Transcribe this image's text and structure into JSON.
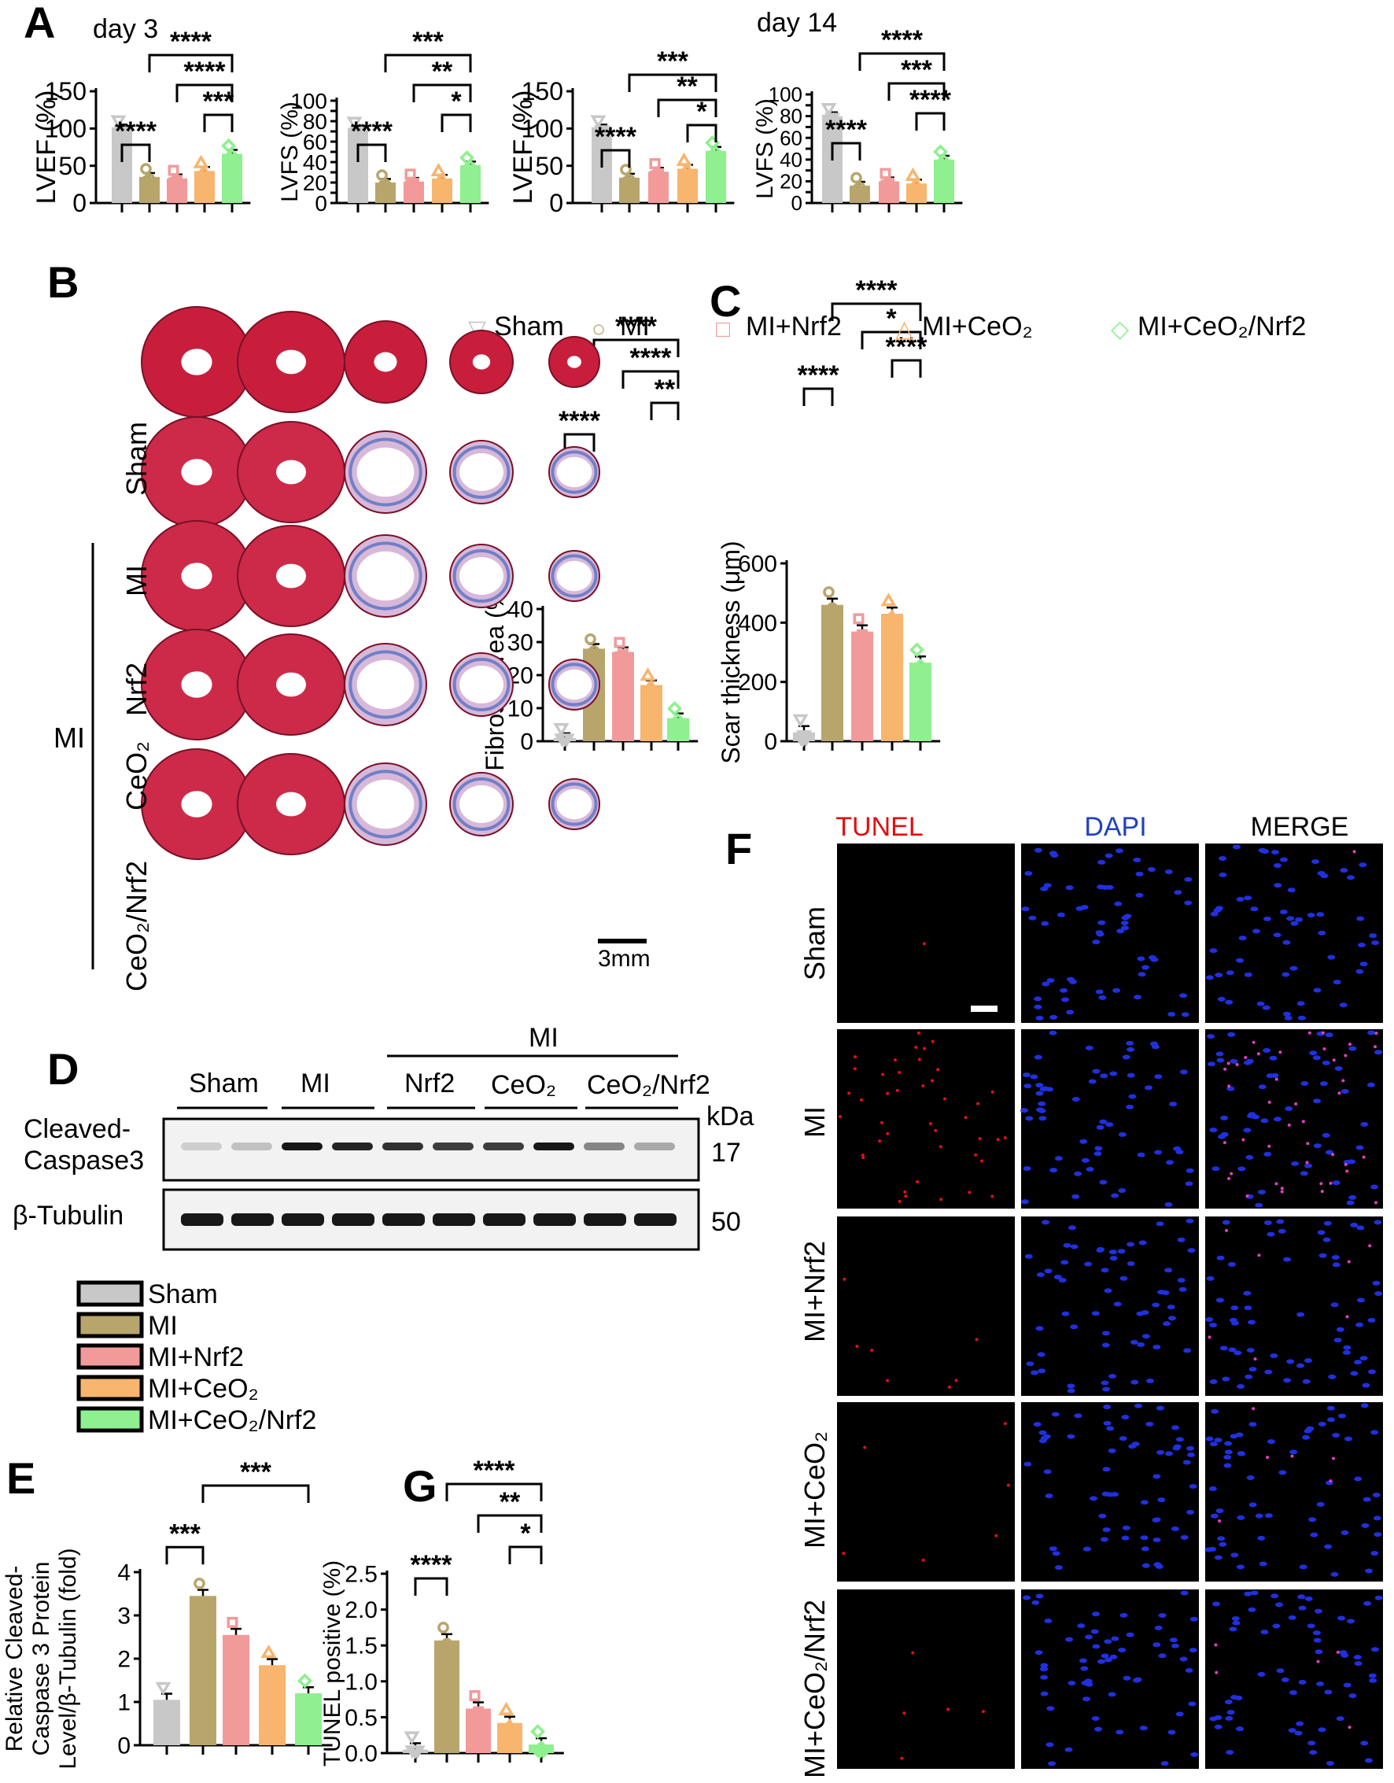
{
  "colors": {
    "Sham": "#c8c8c8",
    "MI": "#b7a56b",
    "MI+Nrf2": "#f29a9a",
    "MI+CeO2": "#f8b56e",
    "MI+CeO2/Nrf2": "#8ef08e",
    "tunel": "#e01010",
    "dapi": "#2040c0"
  },
  "panels": {
    "A": {
      "label": "A",
      "day3": "day 3",
      "day14": "day 14"
    },
    "B": {
      "label": "B",
      "rows": [
        "Sham",
        "MI",
        "Nrf2",
        "CeO₂",
        "CeO₂/Nrf2"
      ],
      "group": "MI",
      "scale": "3mm"
    },
    "C": {
      "label": "C"
    },
    "D": {
      "label": "D",
      "groups": [
        "Sham",
        "MI",
        "Nrf2",
        "CeO₂",
        "CeO₂/Nrf2"
      ],
      "mi_group": "MI",
      "kda": "kDa",
      "row1_line1": "Cleaved-",
      "row1_line2": "Caspase3",
      "row1_kda": "17",
      "row2": "β-Tubulin",
      "row2_kda": "50"
    },
    "E": {
      "label": "E"
    },
    "F": {
      "label": "F",
      "cols": [
        "TUNEL",
        "DAPI",
        "MERGE"
      ],
      "rows": [
        "Sham",
        "MI",
        "MI+Nrf2",
        "MI+CeO₂",
        "MI+CeO₂/Nrf2"
      ]
    },
    "G": {
      "label": "G"
    }
  },
  "legend_a": [
    "Sham",
    "MI",
    "MI+Nrf2",
    "MI+CeO₂",
    "MI+CeO₂/Nrf2"
  ],
  "legend_d": [
    "Sham",
    "MI",
    "MI+Nrf2",
    "MI+CeO₂",
    "MI+CeO₂/Nrf2"
  ],
  "chart_data": [
    {
      "id": "a1",
      "type": "bar",
      "categories": [
        "Sham",
        "MI",
        "MI+Nrf2",
        "MI+CeO2",
        "MI+CeO2/Nrf2"
      ],
      "values": [
        100,
        35,
        33,
        43,
        66
      ],
      "ylabel": "LVEF (%)",
      "ylim": [
        0,
        150
      ],
      "ticks": [
        0,
        50,
        100,
        150
      ],
      "sig": [
        {
          "a": 0,
          "b": 1,
          "t": "****"
        },
        {
          "a": 3,
          "b": 4,
          "t": "***"
        },
        {
          "a": 2,
          "b": 4,
          "t": "****"
        },
        {
          "a": 1,
          "b": 4,
          "t": "****"
        }
      ]
    },
    {
      "id": "a2",
      "type": "bar",
      "categories": [
        "Sham",
        "MI",
        "MI+Nrf2",
        "MI+CeO2",
        "MI+CeO2/Nrf2"
      ],
      "values": [
        72,
        20,
        21,
        24,
        37
      ],
      "ylabel": "LVFS (%)",
      "ylim": [
        0,
        100
      ],
      "ticks": [
        0,
        10,
        20,
        30,
        40,
        50,
        60,
        70,
        80,
        90,
        100
      ],
      "sig": [
        {
          "a": 0,
          "b": 1,
          "t": "****"
        },
        {
          "a": 3,
          "b": 4,
          "t": "*"
        },
        {
          "a": 2,
          "b": 4,
          "t": "**"
        },
        {
          "a": 1,
          "b": 4,
          "t": "***"
        }
      ]
    },
    {
      "id": "a3",
      "type": "bar",
      "categories": [
        "Sham",
        "MI",
        "MI+Nrf2",
        "MI+CeO2",
        "MI+CeO2/Nrf2"
      ],
      "values": [
        100,
        34,
        42,
        46,
        70
      ],
      "ylabel": "LVEF (%)",
      "ylim": [
        0,
        150
      ],
      "ticks": [
        0,
        50,
        100,
        150
      ],
      "sig": [
        {
          "a": 0,
          "b": 1,
          "t": "****"
        },
        {
          "a": 3,
          "b": 4,
          "t": "*"
        },
        {
          "a": 2,
          "b": 4,
          "t": "**"
        },
        {
          "a": 1,
          "b": 4,
          "t": "***"
        }
      ]
    },
    {
      "id": "a4",
      "type": "bar",
      "categories": [
        "Sham",
        "MI",
        "MI+Nrf2",
        "MI+CeO2",
        "MI+CeO2/Nrf2"
      ],
      "values": [
        80,
        16,
        20,
        18,
        40
      ],
      "ylabel": "LVFS (%)",
      "ylim": [
        0,
        100
      ],
      "ticks": [
        0,
        10,
        20,
        30,
        40,
        50,
        60,
        70,
        80,
        90,
        100
      ],
      "sig": [
        {
          "a": 0,
          "b": 1,
          "t": "****"
        },
        {
          "a": 3,
          "b": 4,
          "t": "****"
        },
        {
          "a": 2,
          "b": 4,
          "t": "***"
        },
        {
          "a": 1,
          "b": 4,
          "t": "****"
        }
      ]
    },
    {
      "id": "c1",
      "type": "bar",
      "categories": [
        "Sham",
        "MI",
        "MI+Nrf2",
        "MI+CeO2",
        "MI+CeO2/Nrf2"
      ],
      "values": [
        1,
        28,
        27,
        17,
        7
      ],
      "ylabel": "Fibrosis area (%)",
      "ylim": [
        0,
        40
      ],
      "ticks": [
        0,
        10,
        20,
        30,
        40
      ],
      "sig": [
        {
          "a": 0,
          "b": 1,
          "t": "****"
        },
        {
          "a": 3,
          "b": 4,
          "t": "**"
        },
        {
          "a": 2,
          "b": 4,
          "t": "****"
        },
        {
          "a": 1,
          "b": 4,
          "t": "****"
        }
      ]
    },
    {
      "id": "c2",
      "type": "bar",
      "categories": [
        "Sham",
        "MI",
        "MI+Nrf2",
        "MI+CeO2",
        "MI+CeO2/Nrf2"
      ],
      "values": [
        30,
        460,
        370,
        430,
        265
      ],
      "ylabel": "Scar thickness (μm)",
      "ylim": [
        0,
        600
      ],
      "ticks": [
        0,
        200,
        400,
        600
      ],
      "sig": [
        {
          "a": 0,
          "b": 1,
          "t": "****"
        },
        {
          "a": 3,
          "b": 4,
          "t": "****"
        },
        {
          "a": 2,
          "b": 4,
          "t": "*"
        },
        {
          "a": 1,
          "b": 4,
          "t": "****"
        }
      ]
    },
    {
      "id": "e",
      "type": "bar",
      "categories": [
        "Sham",
        "MI",
        "MI+Nrf2",
        "MI+CeO2",
        "MI+CeO2/Nrf2"
      ],
      "values": [
        1.05,
        3.45,
        2.55,
        1.85,
        1.2
      ],
      "ylabel1": "Relative Cleaved-",
      "ylabel2": "Caspase 3 Protein",
      "ylabel3": "Level/β-Tubulin (fold)",
      "ylim": [
        0,
        4
      ],
      "ticks": [
        0,
        1,
        2,
        3,
        4
      ],
      "sig": [
        {
          "a": 0,
          "b": 1,
          "t": "***"
        },
        {
          "a": 1,
          "b": 4,
          "t": "***"
        }
      ]
    },
    {
      "id": "g",
      "type": "bar",
      "categories": [
        "Sham",
        "MI",
        "MI+Nrf2",
        "MI+CeO2",
        "MI+CeO2/Nrf2"
      ],
      "values": [
        0.05,
        1.57,
        0.62,
        0.42,
        0.12
      ],
      "ylabel": "TUNEL positive (%)",
      "ylim": [
        0,
        2.5
      ],
      "ticks": [
        "0.0",
        "0.5",
        "1.0",
        "1.5",
        "2.0",
        "2.5"
      ],
      "sig": [
        {
          "a": 0,
          "b": 1,
          "t": "****"
        },
        {
          "a": 3,
          "b": 4,
          "t": "*"
        },
        {
          "a": 2,
          "b": 4,
          "t": "**"
        },
        {
          "a": 1,
          "b": 4,
          "t": "****"
        }
      ]
    }
  ]
}
